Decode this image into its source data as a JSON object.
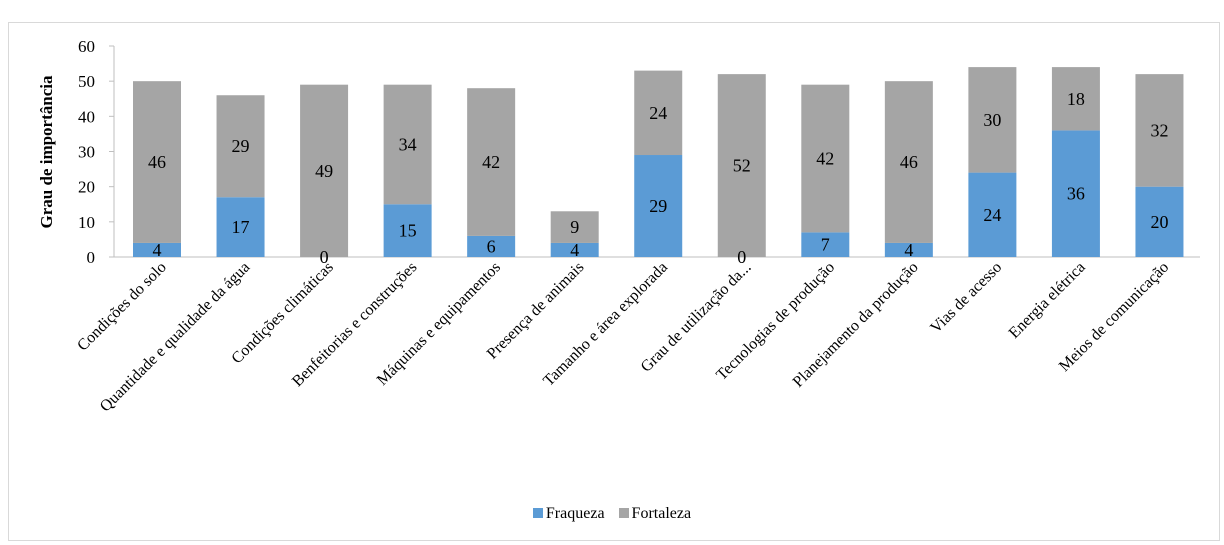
{
  "chart_data": {
    "type": "bar",
    "stacked": true,
    "ylabel": "Grau de importância",
    "xlabel": "",
    "title": "",
    "ylim": [
      0,
      60
    ],
    "yticks": [
      0,
      10,
      20,
      30,
      40,
      50,
      60
    ],
    "grid": false,
    "legend_position": "bottom",
    "categories": [
      "Condições do solo",
      "Quantidade e qualidade da água",
      "Condições climáticas",
      "Benfeitorias e construções",
      "Máquinas e equipamentos",
      "Presença de animais",
      "Tamanho e área explorada",
      "Grau de utilização da...",
      "Tecnologias de produção",
      "Planejamento da produção",
      "Vias de acesso",
      "Energia elétrica",
      "Meios de comunicação"
    ],
    "series": [
      {
        "name": "Fraqueza",
        "color": "#5b9bd5",
        "values": [
          4,
          17,
          0,
          15,
          6,
          4,
          29,
          0,
          7,
          4,
          24,
          36,
          20
        ]
      },
      {
        "name": "Fortaleza",
        "color": "#a5a5a5",
        "values": [
          46,
          29,
          49,
          34,
          42,
          9,
          24,
          52,
          42,
          46,
          30,
          18,
          32
        ]
      }
    ]
  }
}
